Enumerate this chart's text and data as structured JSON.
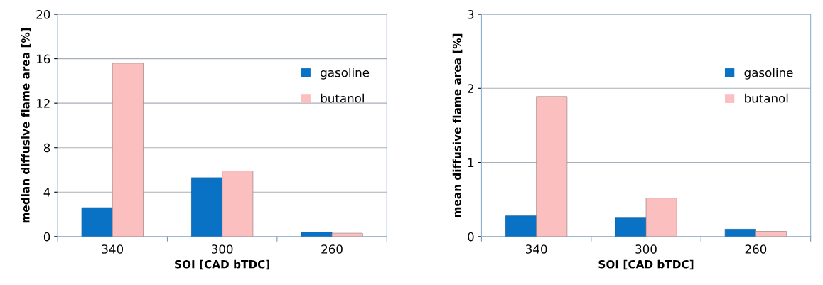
{
  "chart_data": [
    {
      "type": "bar",
      "xlabel": "SOI [CAD bTDC]",
      "ylabel": "median diffusive flame area [%]",
      "categories": [
        "340",
        "300",
        "260"
      ],
      "series": [
        {
          "name": "gasoline",
          "color": "#0a72c4",
          "values": [
            2.6,
            5.3,
            0.4
          ]
        },
        {
          "name": "butanol",
          "color": "#fbbfbf",
          "values": [
            15.6,
            5.9,
            0.3
          ]
        }
      ],
      "ylim": [
        0,
        20
      ],
      "yticks": [
        0,
        4,
        8,
        12,
        16,
        20
      ],
      "grid": "y",
      "legend": "right"
    },
    {
      "type": "bar",
      "xlabel": "SOI [CAD bTDC]",
      "ylabel": "mean diffusive flame area [%]",
      "categories": [
        "340",
        "300",
        "260"
      ],
      "series": [
        {
          "name": "gasoline",
          "color": "#0a72c4",
          "values": [
            0.28,
            0.25,
            0.1
          ]
        },
        {
          "name": "butanol",
          "color": "#fbbfbf",
          "values": [
            1.89,
            0.52,
            0.07
          ]
        }
      ],
      "ylim": [
        0,
        3
      ],
      "yticks": [
        0,
        1,
        2,
        3
      ],
      "grid": "y",
      "legend": "right"
    }
  ]
}
